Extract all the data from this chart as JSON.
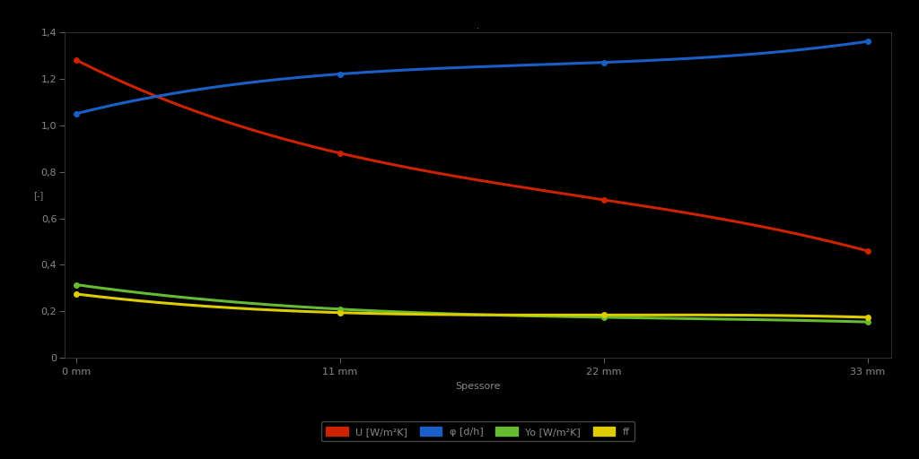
{
  "title": ".",
  "xlabel": "Spessore",
  "ylabel": "[-]",
  "background_color": "#000000",
  "text_color": "#888888",
  "x_ticks": [
    0,
    11,
    22,
    33
  ],
  "x_labels": [
    "0 mm",
    "11 mm",
    "22 mm",
    "33 mm"
  ],
  "ylim": [
    0,
    1.4
  ],
  "y_ticks": [
    0,
    0.2,
    0.4,
    0.6,
    0.8,
    1.0,
    1.2,
    1.4
  ],
  "y_labels": [
    "0",
    "0,2",
    "0,4",
    "0,6",
    "0,8",
    "1,0",
    "1,2",
    "1,4"
  ],
  "series": [
    {
      "label": "U [W/m²K]",
      "color": "#cc2200",
      "x": [
        0,
        11,
        22,
        33
      ],
      "y": [
        1.28,
        0.88,
        0.68,
        0.46
      ]
    },
    {
      "label": "φ [d/h]",
      "color": "#1a5fc8",
      "x": [
        0,
        11,
        22,
        33
      ],
      "y": [
        1.05,
        1.22,
        1.27,
        1.36
      ]
    },
    {
      "label": "Yo [W/m²K]",
      "color": "#66bb33",
      "x": [
        0,
        11,
        22,
        33
      ],
      "y": [
        0.315,
        0.21,
        0.175,
        0.155
      ]
    },
    {
      "label": "ff",
      "color": "#ddcc00",
      "x": [
        0,
        11,
        22,
        33
      ],
      "y": [
        0.275,
        0.195,
        0.185,
        0.175
      ]
    }
  ],
  "legend_labels": [
    "U [W/m²K]",
    "φ [d/h]",
    "Yo [W/m²K]",
    "ff"
  ],
  "legend_colors": [
    "#cc2200",
    "#1a5fc8",
    "#66bb33",
    "#ddcc00"
  ]
}
